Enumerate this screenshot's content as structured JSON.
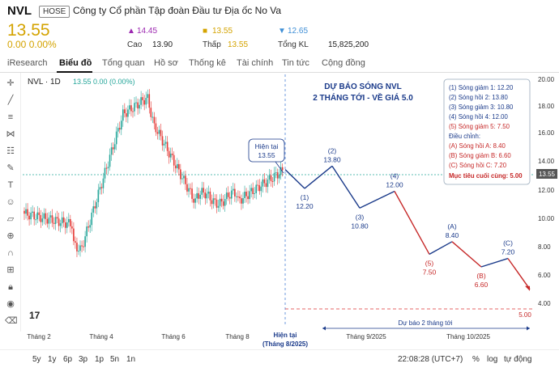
{
  "header": {
    "ticker": "NVL",
    "exchange": "HOSE",
    "company": "Công ty Cổ phần Tập đoàn Đầu tư Địa ốc No Va",
    "price": "13.55",
    "change": "0.00 0.00%",
    "ceiling_symbol": "▲",
    "ceiling": "14.45",
    "reference_symbol": "■",
    "reference": "13.55",
    "floor_symbol": "▼",
    "floor": "12.65",
    "high_label": "Cao",
    "high": "13.90",
    "low_label": "Thấp",
    "low": "13.55",
    "volume_label": "Tổng KL",
    "volume": "15,825,200"
  },
  "tabs": [
    "iResearch",
    "Biểu đồ",
    "Tổng quan",
    "Hồ sơ",
    "Thống kê",
    "Tài chính",
    "Tin tức",
    "Cộng đồng"
  ],
  "chart_header": {
    "symbol": "NVL · 1D",
    "ohlc": "13.55 0.00 (0.00%)"
  },
  "chart": {
    "forecast_title_1": "DỰ BÁO SÓNG NVL",
    "forecast_title_2": "2 THÁNG TỚI - VỀ GIÁ 5.0",
    "current_callout_1": "Hiện tại",
    "current_callout_2": "13.55",
    "price_tag": "13.55",
    "now_label_1": "Hiện tại",
    "now_label_2": "(Tháng 8/2025)",
    "forecast_span_label": "Dự báo 2 tháng tới",
    "target_tag": "5.00",
    "xaxis": [
      "Tháng 2",
      "Tháng 4",
      "Tháng 6",
      "Tháng 8",
      "Tháng 9/2025",
      "Tháng 10/2025"
    ],
    "yaxis": [
      "20.00",
      "18.00",
      "16.00",
      "14.00",
      "12.00",
      "10.00",
      "8.00",
      "6.00",
      "4.00"
    ],
    "legend": {
      "items": [
        "(1) Sóng giảm 1: 12.20",
        "(2) Sóng hồi 2: 13.80",
        "(3) Sóng giảm 3: 10.80",
        "(4) Sóng hồi 4: 12.00",
        "(5) Sóng giảm 5: 7.50"
      ],
      "adjust_title": "Điều chỉnh:",
      "adjust_items": [
        "(A) Sóng hồi A: 8.40",
        "(B) Sóng giảm B: 6.60",
        "(C) Sóng hồi C: 7.20"
      ],
      "final": "Mục tiêu cuối cùng: 5.00"
    },
    "wave_points": [
      {
        "label": "(1)",
        "value": "12.20",
        "v": 12.2
      },
      {
        "label": "(2)",
        "value": "13.80",
        "v": 13.8
      },
      {
        "label": "(3)",
        "value": "10.80",
        "v": 10.8
      },
      {
        "label": "(4)",
        "value": "12.00",
        "v": 12.0
      },
      {
        "label": "(5)",
        "value": "7.50",
        "v": 7.5
      },
      {
        "label": "(A)",
        "value": "8.40",
        "v": 8.4
      },
      {
        "label": "(B)",
        "value": "6.60",
        "v": 6.6
      },
      {
        "label": "(C)",
        "value": "7.20",
        "v": 7.2
      }
    ],
    "colors": {
      "up": "#26a69a",
      "down": "#e53935",
      "wave_blue": "#1a3a8a",
      "wave_red": "#c62828",
      "price": "#d4a300"
    }
  },
  "bottom": {
    "ranges": [
      "5y",
      "1y",
      "6p",
      "3p",
      "1p",
      "5n",
      "1n"
    ],
    "time": "22:08:28 (UTC+7)",
    "pct": "%",
    "log": "log",
    "auto": "tự động"
  }
}
